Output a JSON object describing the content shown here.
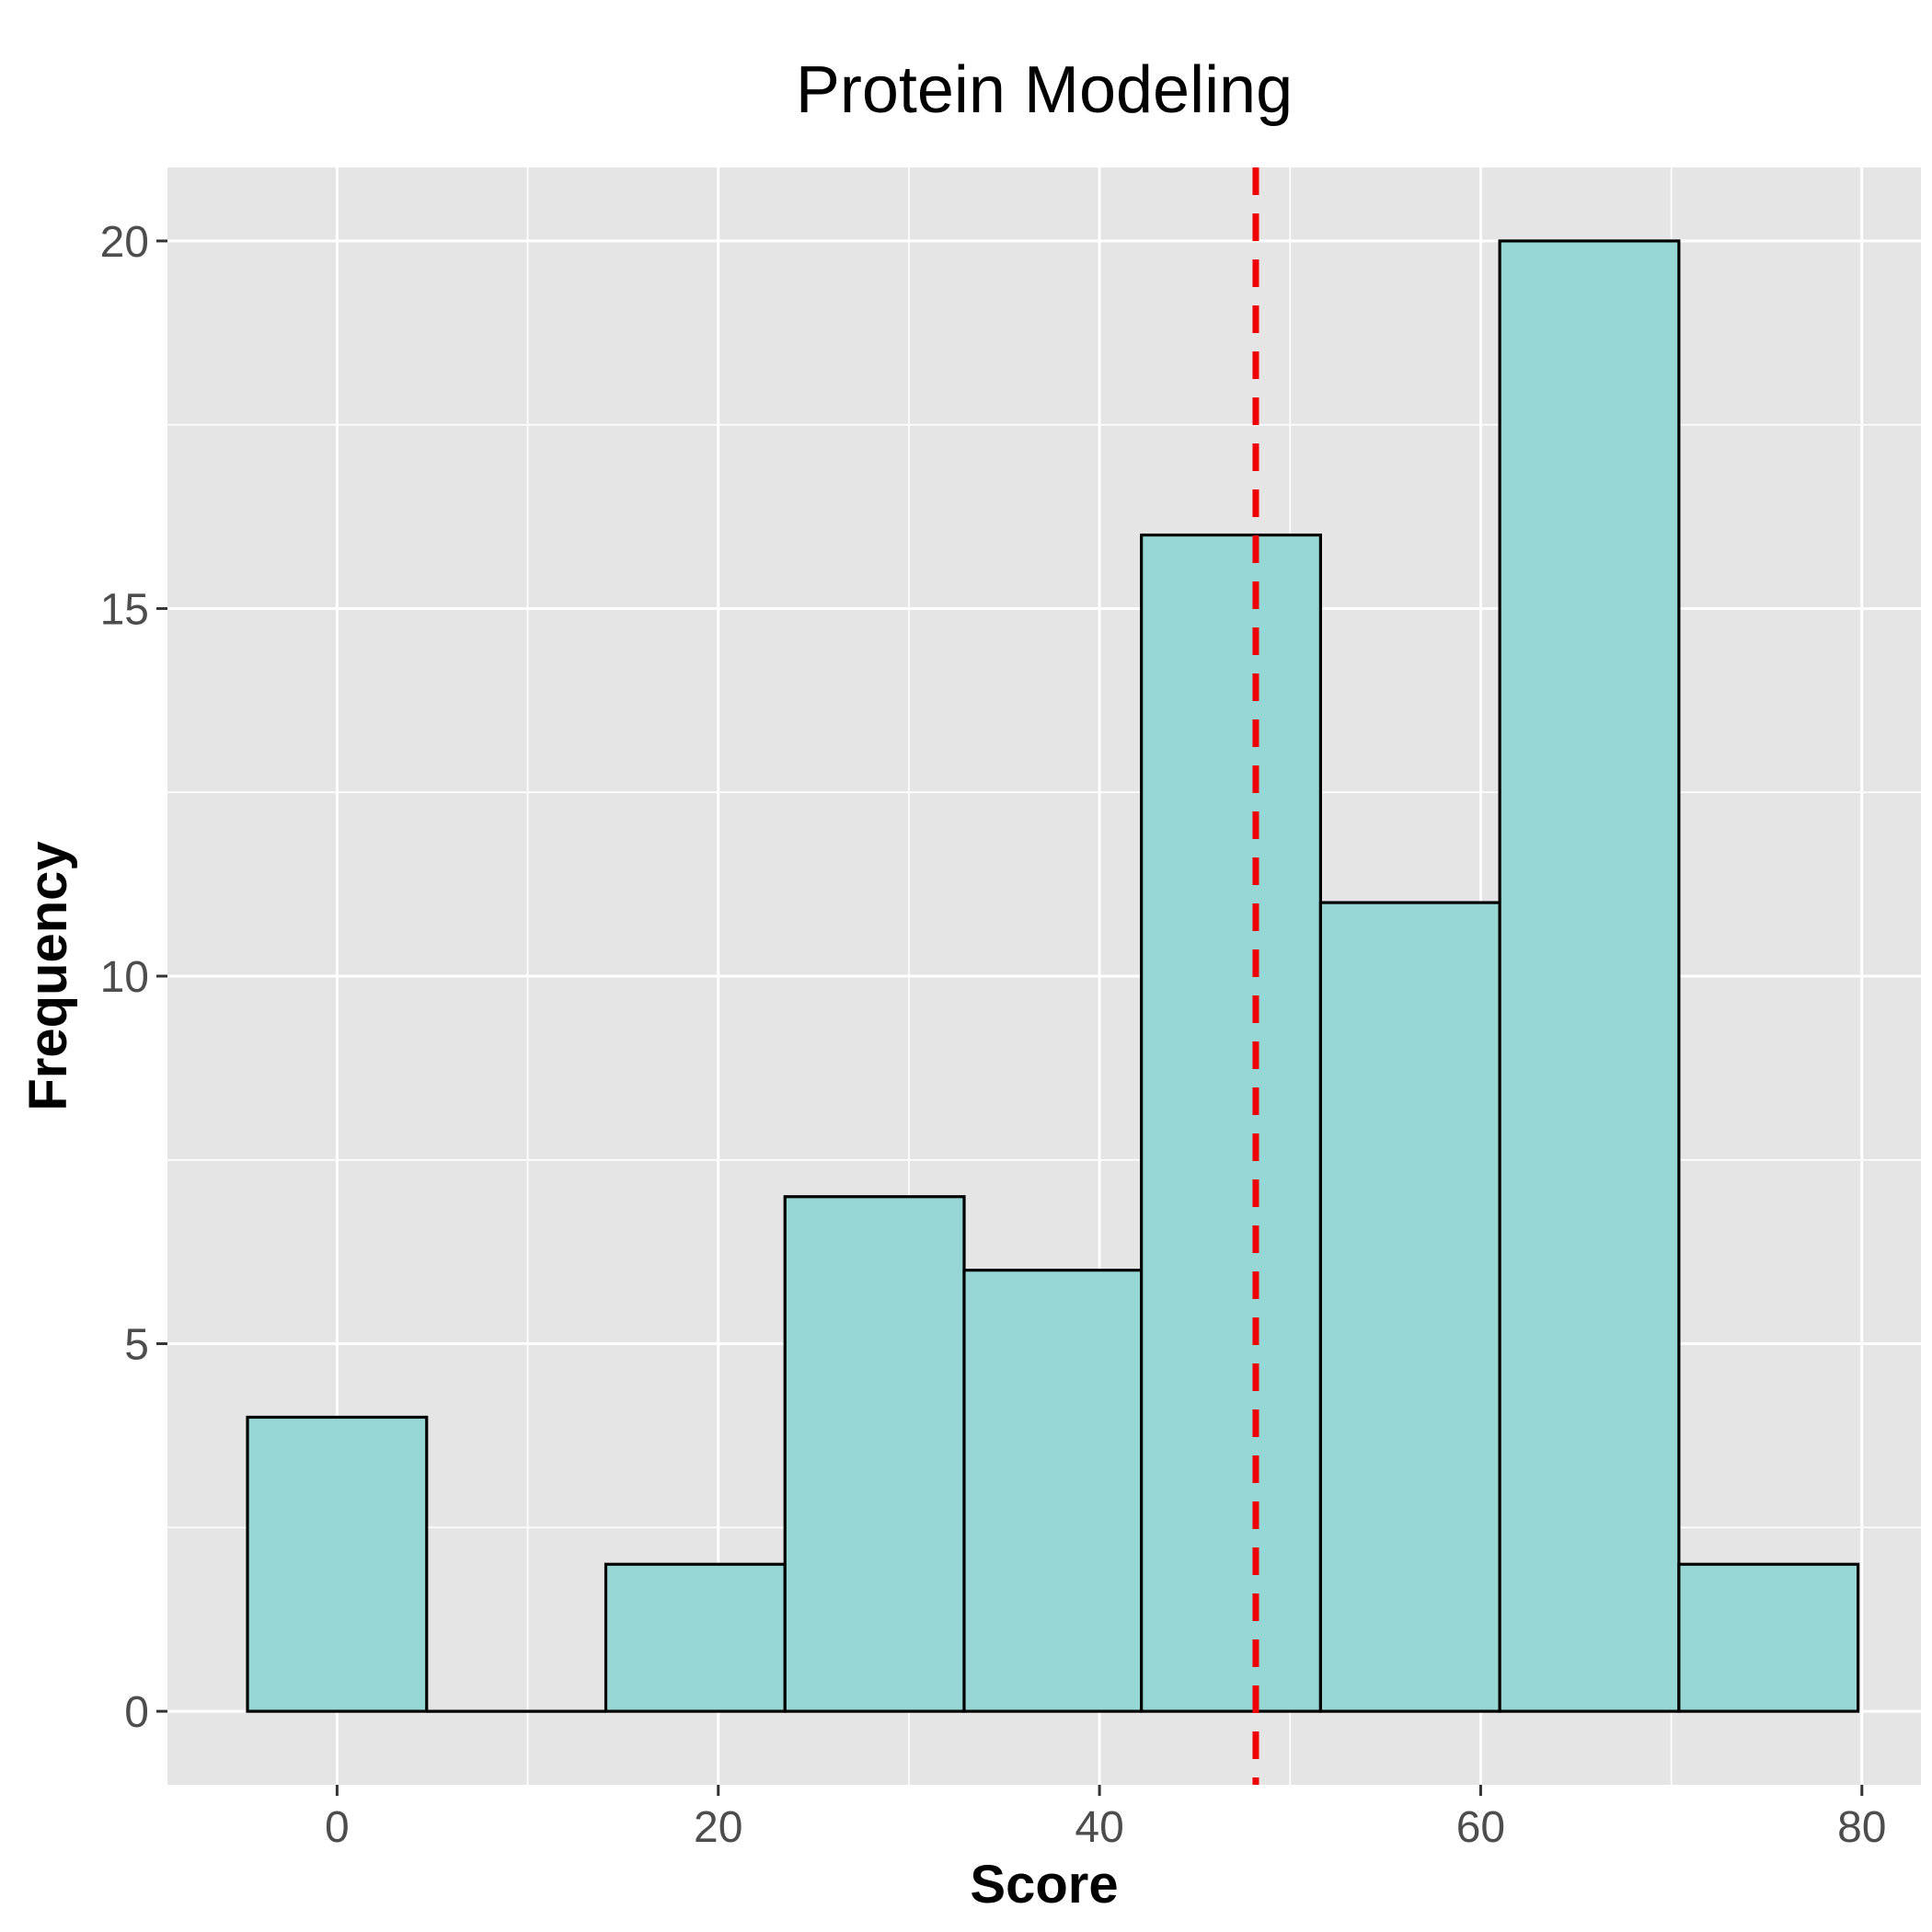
{
  "chart_data": {
    "type": "bar",
    "subtype": "histogram",
    "title": "Protein Modeling",
    "xlabel": "Score",
    "ylabel": "Frequency",
    "xlim": [
      -8.9,
      83.1
    ],
    "ylim": [
      -1,
      21
    ],
    "x_ticks": [
      0,
      20,
      40,
      60,
      80
    ],
    "x_tick_labels": [
      "0",
      "20",
      "40",
      "60",
      "80"
    ],
    "y_ticks": [
      0,
      5,
      10,
      15,
      20
    ],
    "y_tick_labels": [
      "0",
      "5",
      "10",
      "15",
      "20"
    ],
    "bins": [
      {
        "x_start": -4.7,
        "x_end": 4.7,
        "count": 4
      },
      {
        "x_start": 4.7,
        "x_end": 14.1,
        "count": 0
      },
      {
        "x_start": 14.1,
        "x_end": 23.5,
        "count": 2
      },
      {
        "x_start": 23.5,
        "x_end": 32.9,
        "count": 7
      },
      {
        "x_start": 32.9,
        "x_end": 42.2,
        "count": 6
      },
      {
        "x_start": 42.2,
        "x_end": 51.6,
        "count": 16
      },
      {
        "x_start": 51.6,
        "x_end": 61.0,
        "count": 11
      },
      {
        "x_start": 61.0,
        "x_end": 70.4,
        "count": 20
      },
      {
        "x_start": 70.4,
        "x_end": 79.8,
        "count": 2
      }
    ],
    "reference_line": {
      "x": 48.2,
      "style": "dashed"
    },
    "grid": true,
    "legend": "none",
    "colors": {
      "bar_fill": "#96d7d6",
      "bar_stroke": "#000000",
      "panel_background": "#e5e5e5",
      "grid": "#ffffff",
      "reference_line": "#ee0000"
    }
  }
}
